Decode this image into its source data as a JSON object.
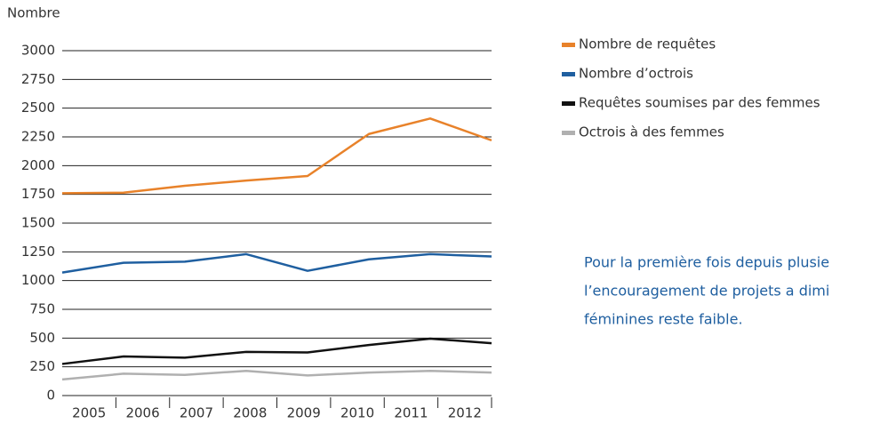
{
  "chart_data": {
    "type": "line",
    "y_label": "Nombre",
    "categories": [
      "2005",
      "2006",
      "2007",
      "2008",
      "2009",
      "2010",
      "2011",
      "2012"
    ],
    "series": [
      {
        "name": "Nombre de requêtes",
        "color": "#e8822a",
        "values": [
          1760,
          1765,
          1825,
          1870,
          1910,
          2275,
          2410,
          2220
        ]
      },
      {
        "name": "Nombre d’octrois",
        "color": "#1f5fa0",
        "values": [
          1070,
          1155,
          1165,
          1230,
          1085,
          1185,
          1230,
          1210
        ]
      },
      {
        "name": "Requêtes soumises par des femmes",
        "color": "#111111",
        "values": [
          275,
          340,
          330,
          380,
          375,
          440,
          495,
          455
        ]
      },
      {
        "name": "Octrois à des femmes",
        "color": "#b0b0b0",
        "values": [
          140,
          190,
          180,
          215,
          175,
          200,
          215,
          200
        ]
      }
    ],
    "ylim": [
      0,
      3000
    ],
    "yticks": [
      0,
      250,
      500,
      750,
      1000,
      1250,
      1500,
      1750,
      2000,
      2250,
      2500,
      2750,
      3000
    ],
    "grid": true,
    "annotation": [
      "Pour la première fois depuis plusie",
      "l’encouragement de projets a dimi",
      "féminines reste faible."
    ]
  }
}
